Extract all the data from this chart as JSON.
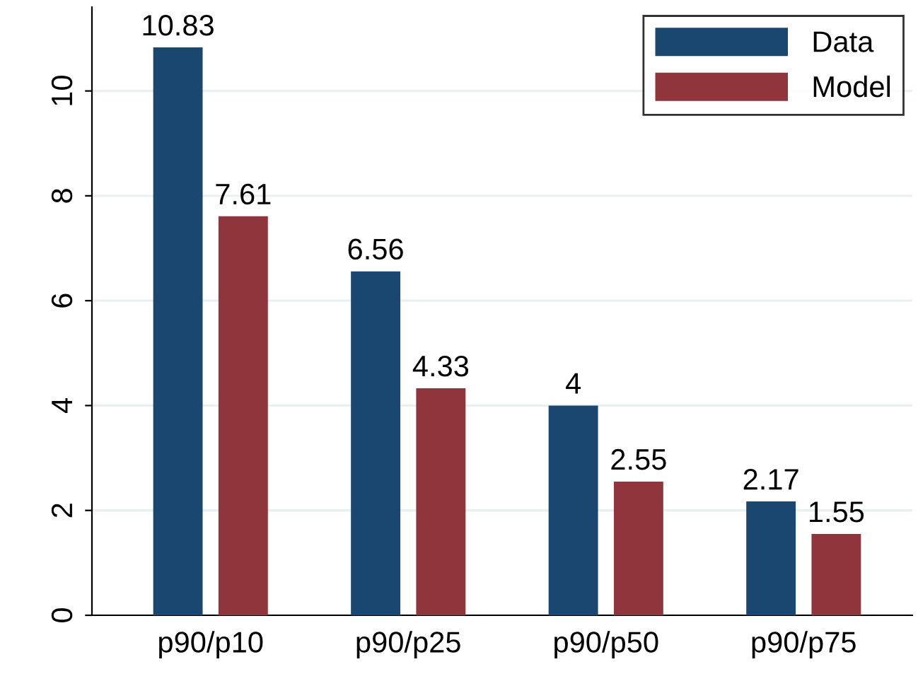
{
  "chart_data": {
    "type": "bar",
    "categories": [
      "p90/p10",
      "p90/p25",
      "p90/p50",
      "p90/p75"
    ],
    "series": [
      {
        "name": "Data",
        "color": "#1a476f",
        "values": [
          10.83,
          6.56,
          4,
          2.17
        ]
      },
      {
        "name": "Model",
        "color": "#90353b",
        "values": [
          7.61,
          4.33,
          2.55,
          1.55
        ]
      }
    ],
    "ylim": [
      0,
      11.6
    ],
    "yticks": [
      0,
      2,
      4,
      6,
      8,
      10
    ],
    "grid": "y",
    "legend": "top right",
    "data_labels": true
  }
}
